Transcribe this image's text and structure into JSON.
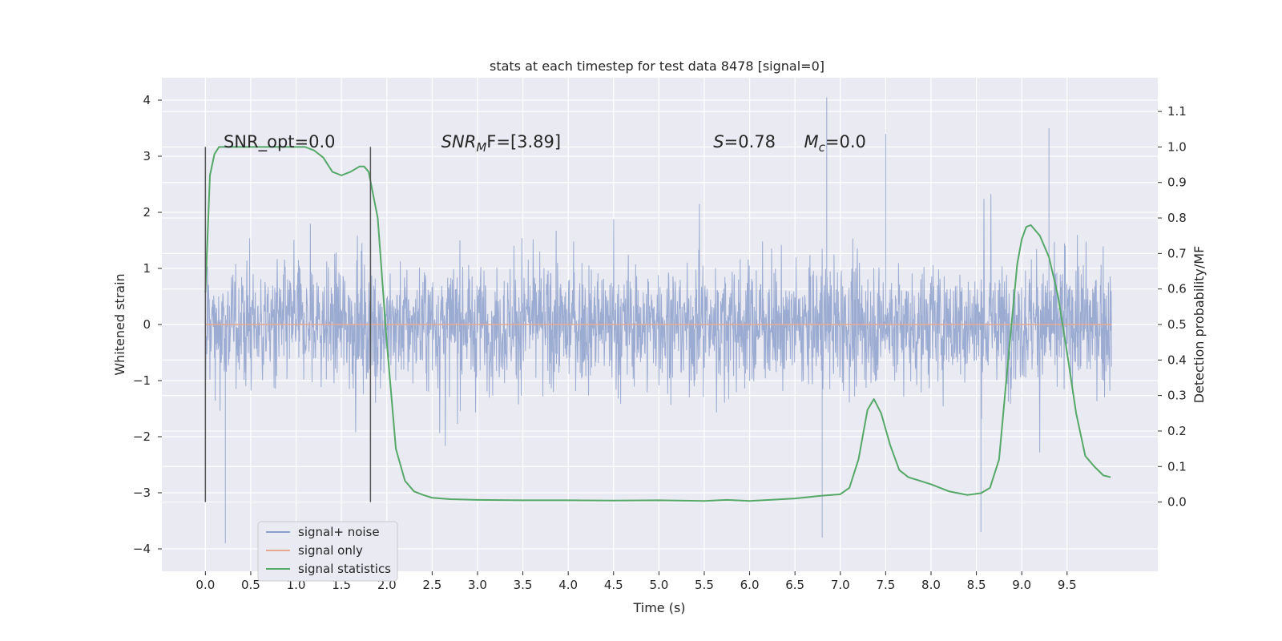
{
  "chart_data": {
    "type": "line",
    "title": "stats at each timestep for test data 8478 [signal=0]",
    "xlabel": "Time (s)",
    "ylabel_left": "Whitened strain",
    "ylabel_right": "Detection probability/MF",
    "xlim": [
      -0.48,
      10.5
    ],
    "ylim_left": [
      -4.4,
      4.4
    ],
    "ylim_right": [
      -0.195,
      1.195
    ],
    "x_ticks": [
      "0.0",
      "0.5",
      "1.0",
      "1.5",
      "2.0",
      "2.5",
      "3.0",
      "3.5",
      "4.0",
      "4.5",
      "5.0",
      "5.5",
      "6.0",
      "6.5",
      "7.0",
      "7.5",
      "8.0",
      "8.5",
      "9.0",
      "9.5"
    ],
    "y_ticks_left": [
      "−4",
      "−3",
      "−2",
      "−1",
      "0",
      "1",
      "2",
      "3",
      "4"
    ],
    "y_ticks_right": [
      "0.0",
      "0.1",
      "0.2",
      "0.3",
      "0.4",
      "0.5",
      "0.6",
      "0.7",
      "0.8",
      "0.9",
      "1.0",
      "1.1"
    ],
    "grid": true,
    "legend_position": "bottom-left",
    "vertical_markers_x": [
      0.0,
      1.82
    ],
    "annotations": [
      {
        "text": "SNR_opt=0.0",
        "x": 0.2
      },
      {
        "text": "SNR_MF=[3.89]",
        "x": 2.6,
        "base": "SNR",
        "sub": "M",
        "tail": "F=[3.89]"
      },
      {
        "text": "S=0.78",
        "x": 5.6,
        "base": "S",
        "tail": "=0.78"
      },
      {
        "text": "M_c=0.0",
        "x": 6.6,
        "base": "M",
        "sub": "c",
        "tail": "=0.0"
      }
    ],
    "series": [
      {
        "name": "signal+ noise",
        "axis": "left",
        "color": "#8da0cb",
        "description_of_values": "noise trace sampled 0-10 s",
        "x_range": [
          0.0,
          9.99
        ],
        "typical_range": [
          -2.0,
          2.5
        ],
        "peaks": [
          [
            6.85,
            4.05
          ],
          [
            0.22,
            -3.9
          ],
          [
            6.8,
            -3.8
          ],
          [
            8.55,
            -3.7
          ],
          [
            9.3,
            3.5
          ],
          [
            7.5,
            3.4
          ]
        ]
      },
      {
        "name": "signal only",
        "axis": "left",
        "color": "#e8a98f",
        "x": [
          0.0,
          9.99
        ],
        "y": [
          0.0,
          0.0
        ]
      },
      {
        "name": "signal statistics",
        "axis": "right",
        "color": "#55a868",
        "x": [
          0.0,
          0.05,
          0.1,
          0.15,
          0.2,
          0.3,
          0.5,
          0.7,
          0.9,
          1.0,
          1.1,
          1.2,
          1.3,
          1.4,
          1.5,
          1.6,
          1.7,
          1.75,
          1.8,
          1.9,
          2.0,
          2.1,
          2.2,
          2.3,
          2.4,
          2.5,
          2.7,
          3.0,
          3.5,
          4.0,
          4.5,
          5.0,
          5.5,
          5.75,
          6.0,
          6.5,
          6.8,
          7.0,
          7.1,
          7.2,
          7.3,
          7.37,
          7.45,
          7.55,
          7.65,
          7.75,
          8.0,
          8.2,
          8.4,
          8.55,
          8.65,
          8.75,
          8.85,
          8.95,
          9.0,
          9.05,
          9.1,
          9.2,
          9.3,
          9.4,
          9.5,
          9.6,
          9.7,
          9.8,
          9.9,
          9.98
        ],
        "y": [
          0.59,
          0.92,
          0.98,
          1.0,
          1.0,
          1.0,
          1.0,
          1.0,
          1.0,
          1.0,
          1.0,
          0.99,
          0.97,
          0.93,
          0.92,
          0.93,
          0.945,
          0.945,
          0.93,
          0.8,
          0.45,
          0.15,
          0.06,
          0.03,
          0.02,
          0.012,
          0.008,
          0.006,
          0.005,
          0.005,
          0.004,
          0.005,
          0.003,
          0.006,
          0.003,
          0.01,
          0.018,
          0.022,
          0.04,
          0.12,
          0.26,
          0.29,
          0.25,
          0.16,
          0.09,
          0.07,
          0.05,
          0.03,
          0.02,
          0.025,
          0.04,
          0.12,
          0.4,
          0.67,
          0.74,
          0.775,
          0.78,
          0.75,
          0.69,
          0.58,
          0.42,
          0.25,
          0.13,
          0.1,
          0.075,
          0.07
        ]
      }
    ]
  }
}
